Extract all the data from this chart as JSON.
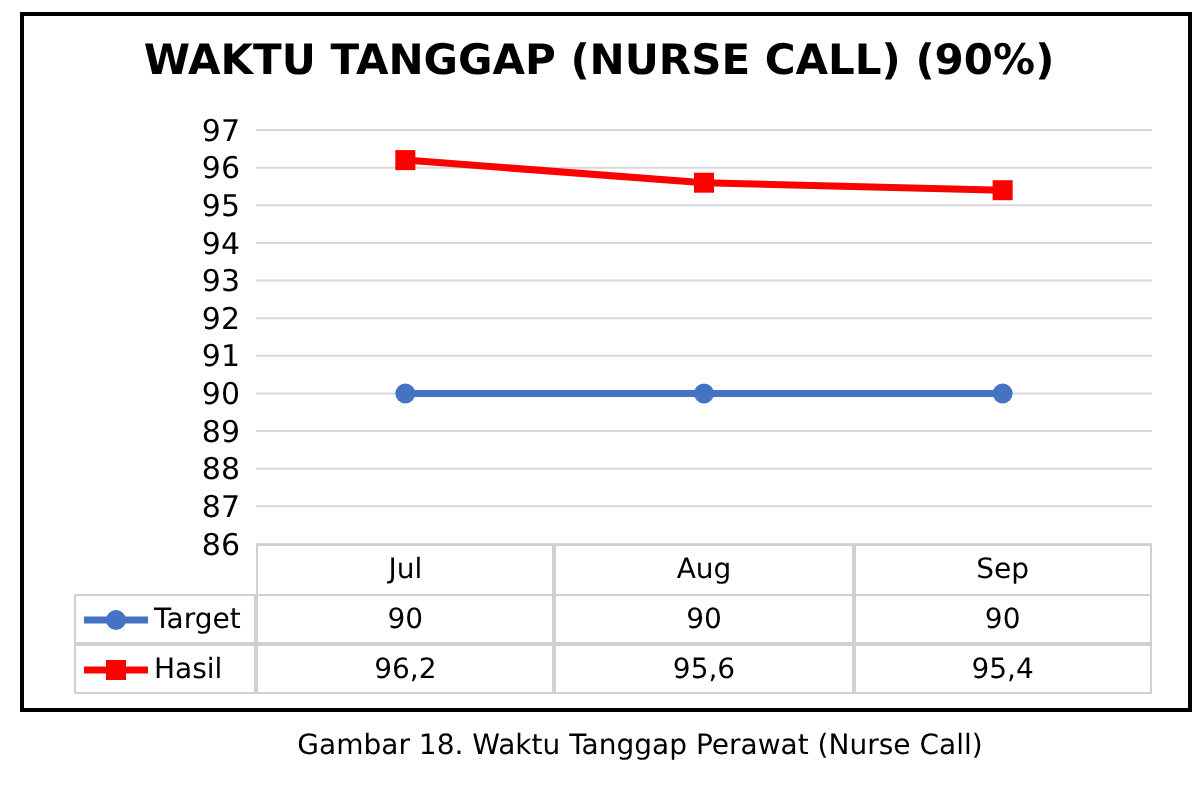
{
  "chart_data": {
    "type": "line",
    "title": "WAKTU TANGGAP (NURSE CALL) (90%)",
    "categories": [
      "Jul",
      "Aug",
      "Sep"
    ],
    "series": [
      {
        "name": "Target",
        "color": "#4472c4",
        "values": [
          90,
          90,
          90
        ],
        "marker": "circle",
        "value_labels": [
          "90",
          "90",
          "90"
        ]
      },
      {
        "name": "Hasil",
        "color": "#ff0000",
        "values": [
          96.2,
          95.6,
          95.4
        ],
        "marker": "square",
        "value_labels": [
          "96,2",
          "95,6",
          "95,4"
        ]
      }
    ],
    "ylim": [
      86,
      97
    ],
    "yticks": [
      86,
      87,
      88,
      89,
      90,
      91,
      92,
      93,
      94,
      95,
      96,
      97
    ],
    "grid": "y",
    "legend": "bottom left",
    "annotations": [
      "Gambar 18. Waktu Tanggap Perawat (Nurse Call)"
    ]
  }
}
